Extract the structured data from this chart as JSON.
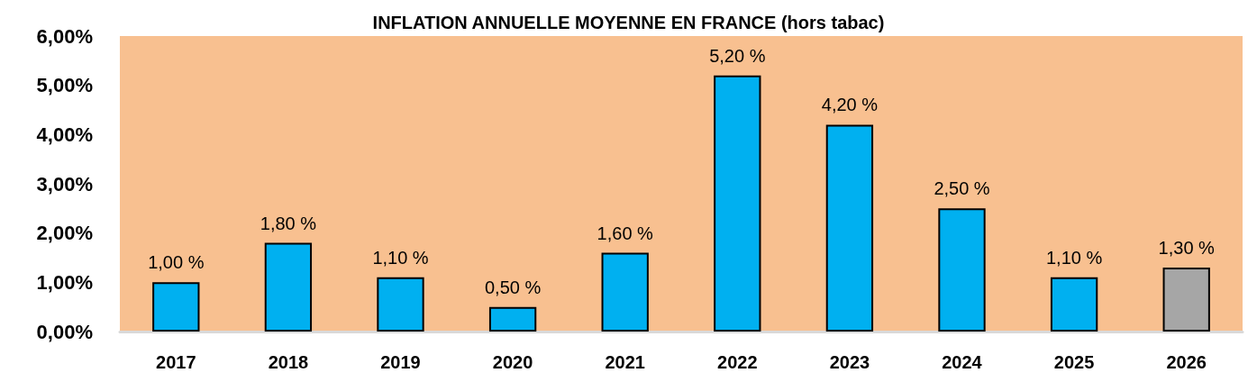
{
  "chart_data": {
    "type": "bar",
    "title": "INFLATION ANNUELLE MOYENNE EN FRANCE (hors tabac)",
    "categories": [
      "2017",
      "2018",
      "2019",
      "2020",
      "2021",
      "2022",
      "2023",
      "2024",
      "2025",
      "2026"
    ],
    "values": [
      1.0,
      1.8,
      1.1,
      0.5,
      1.6,
      5.2,
      4.2,
      2.5,
      1.1,
      1.3
    ],
    "colors": [
      "#00b0f0",
      "#00b0f0",
      "#00b0f0",
      "#00b0f0",
      "#00b0f0",
      "#00b0f0",
      "#00b0f0",
      "#00b0f0",
      "#00b0f0",
      "#a6a6a6"
    ],
    "value_labels": [
      "1,00 %",
      "1,80 %",
      "1,10 %",
      "0,50 %",
      "1,60 %",
      "5,20 %",
      "4,20 %",
      "2,50 %",
      "1,10 %",
      "1,30 %"
    ],
    "ylim": [
      0,
      6
    ],
    "yticks": [
      {
        "value": 0,
        "label": "0,00%"
      },
      {
        "value": 1,
        "label": "1,00%"
      },
      {
        "value": 2,
        "label": "2,00%"
      },
      {
        "value": 3,
        "label": "3,00%"
      },
      {
        "value": 4,
        "label": "4,00%"
      },
      {
        "value": 5,
        "label": "5,00%"
      },
      {
        "value": 6,
        "label": "6,00%"
      }
    ],
    "grid": false
  }
}
